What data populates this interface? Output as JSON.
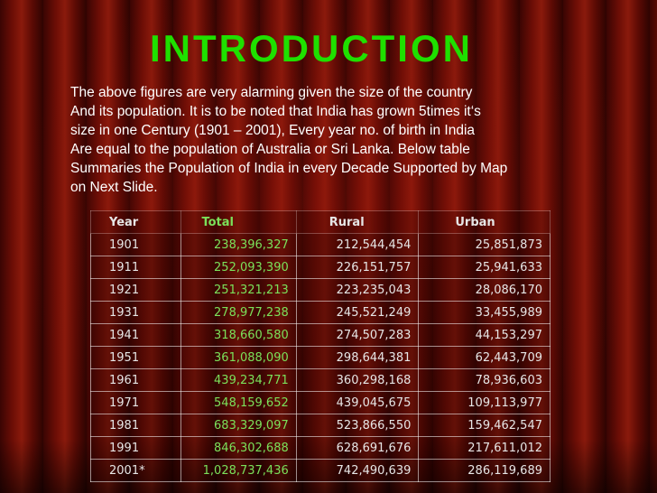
{
  "title": "INTRODUCTION",
  "paragraph": [
    "The above figures are very alarming given the size of the country",
    "And its population. It is to be noted that India has grown 5times it‘s",
    "size in one Century (1901 – 2001), Every year no. of birth in India",
    "Are equal to the population of Australia or Sri Lanka. Below table",
    "Summaries the Population of India in every Decade Supported by Map",
    "on Next Slide."
  ],
  "table": {
    "header": [
      "Year",
      "Total",
      "Rural",
      "Urban"
    ],
    "rows": [
      [
        "1901",
        "238,396,327",
        "212,544,454",
        "25,851,873"
      ],
      [
        "1911",
        "252,093,390",
        "226,151,757",
        "25,941,633"
      ],
      [
        "1921",
        "251,321,213",
        "223,235,043",
        "28,086,170"
      ],
      [
        "1931",
        "278,977,238",
        "245,521,249",
        "33,455,989"
      ],
      [
        "1941",
        "318,660,580",
        "274,507,283",
        "44,153,297"
      ],
      [
        "1951",
        "361,088,090",
        "298,644,381",
        "62,443,709"
      ],
      [
        "1961",
        "439,234,771",
        "360,298,168",
        "78,936,603"
      ],
      [
        "1971",
        "548,159,652",
        "439,045,675",
        "109,113,977"
      ],
      [
        "1981",
        "683,329,097",
        "523,866,550",
        "159,462,547"
      ],
      [
        "1991",
        "846,302,688",
        "628,691,676",
        "217,611,012"
      ],
      [
        "2001*",
        "1,028,737,436",
        "742,490,639",
        "286,119,689"
      ]
    ]
  }
}
